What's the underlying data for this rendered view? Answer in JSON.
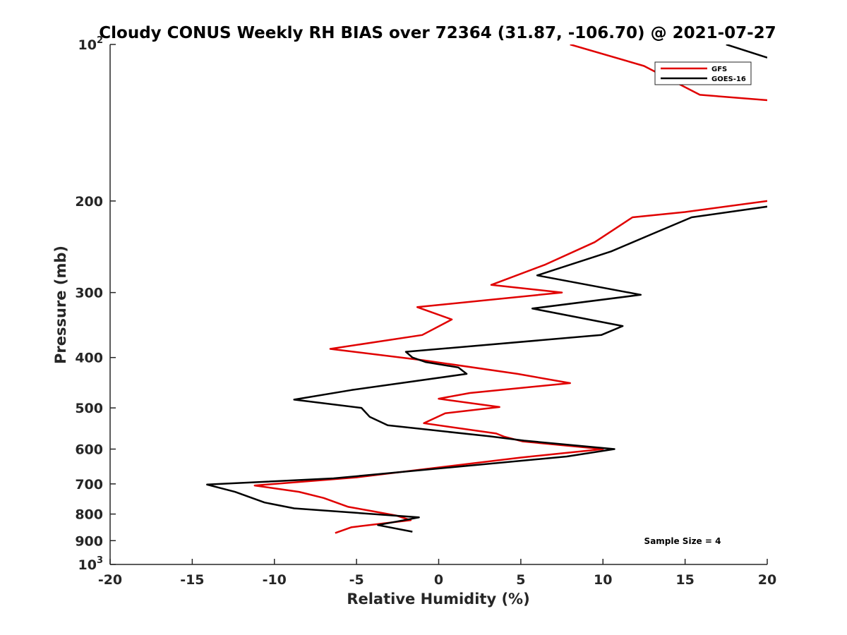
{
  "chart_data": {
    "type": "line",
    "title": "Cloudy CONUS Weekly RH BIAS over 72364 (31.87, -106.70) @ 2021-07-27",
    "xlabel": "Relative Humidity (%)",
    "ylabel": "Pressure (mb)",
    "xlim": [
      -20,
      20
    ],
    "ylim": [
      100,
      1000
    ],
    "y_scale": "log",
    "y_reversed": true,
    "x_ticks": [
      "-20",
      "-15",
      "-10",
      "-5",
      "0",
      "5",
      "10",
      "15",
      "20"
    ],
    "y_ticks": [
      {
        "value": 100,
        "base": "10",
        "exp": "2"
      },
      {
        "value": 200,
        "base": "200",
        "exp": ""
      },
      {
        "value": 300,
        "base": "300",
        "exp": ""
      },
      {
        "value": 400,
        "base": "400",
        "exp": ""
      },
      {
        "value": 500,
        "base": "500",
        "exp": ""
      },
      {
        "value": 600,
        "base": "600",
        "exp": ""
      },
      {
        "value": 700,
        "base": "700",
        "exp": ""
      },
      {
        "value": 800,
        "base": "800",
        "exp": ""
      },
      {
        "value": 900,
        "base": "900",
        "exp": ""
      },
      {
        "value": 1000,
        "base": "10",
        "exp": "3"
      }
    ],
    "legend_position": "top-right",
    "annotation": "Sample Size = 4",
    "series": [
      {
        "name": "GFS",
        "color": "#e00000",
        "points": [
          [
            8.0,
            100
          ],
          [
            12.5,
            110
          ],
          [
            15.9,
            125
          ],
          [
            20.0,
            128
          ],
          [
            null,
            null
          ],
          [
            20.0,
            200
          ],
          [
            15.0,
            210
          ],
          [
            11.8,
            215
          ],
          [
            9.5,
            240
          ],
          [
            6.5,
            265
          ],
          [
            3.2,
            290
          ],
          [
            7.5,
            300
          ],
          [
            -1.3,
            320
          ],
          [
            0.8,
            338
          ],
          [
            -1.0,
            362
          ],
          [
            -6.6,
            385
          ],
          [
            -0.9,
            405
          ],
          [
            4.8,
            430
          ],
          [
            8.0,
            448
          ],
          [
            1.9,
            468
          ],
          [
            0.0,
            480
          ],
          [
            3.7,
            498
          ],
          [
            0.4,
            512
          ],
          [
            -0.9,
            535
          ],
          [
            3.5,
            560
          ],
          [
            4.0,
            568
          ],
          [
            5.1,
            580
          ],
          [
            10.0,
            600
          ],
          [
            5.0,
            623
          ],
          [
            -5.0,
            680
          ],
          [
            -11.2,
            705
          ],
          [
            -8.5,
            725
          ],
          [
            -7.0,
            745
          ],
          [
            -5.5,
            775
          ],
          [
            -4.0,
            790
          ],
          [
            -2.6,
            805
          ],
          [
            -1.7,
            822
          ],
          [
            -4.9,
            845
          ],
          [
            -5.3,
            848
          ],
          [
            -6.3,
            870
          ]
        ]
      },
      {
        "name": "GOES-16",
        "color": "#000000",
        "points": [
          [
            17.5,
            100
          ],
          [
            20.0,
            106
          ],
          [
            null,
            null
          ],
          [
            20.0,
            205
          ],
          [
            15.4,
            215
          ],
          [
            13.2,
            230
          ],
          [
            10.5,
            250
          ],
          [
            6.0,
            278
          ],
          [
            12.3,
            303
          ],
          [
            5.7,
            322
          ],
          [
            11.2,
            348
          ],
          [
            9.9,
            362
          ],
          [
            -2.0,
            390
          ],
          [
            -1.6,
            400
          ],
          [
            -0.8,
            408
          ],
          [
            1.2,
            418
          ],
          [
            1.7,
            430
          ],
          [
            -5.3,
            462
          ],
          [
            -8.8,
            482
          ],
          [
            -4.7,
            500
          ],
          [
            -4.2,
            520
          ],
          [
            -3.1,
            540
          ],
          [
            3.1,
            567
          ],
          [
            5.2,
            578
          ],
          [
            10.7,
            600
          ],
          [
            7.8,
            620
          ],
          [
            -6.4,
            683
          ],
          [
            -14.1,
            702
          ],
          [
            -12.4,
            725
          ],
          [
            -10.6,
            760
          ],
          [
            -8.8,
            780
          ],
          [
            -1.2,
            812
          ],
          [
            -3.7,
            840
          ],
          [
            -1.6,
            865
          ]
        ]
      }
    ]
  }
}
